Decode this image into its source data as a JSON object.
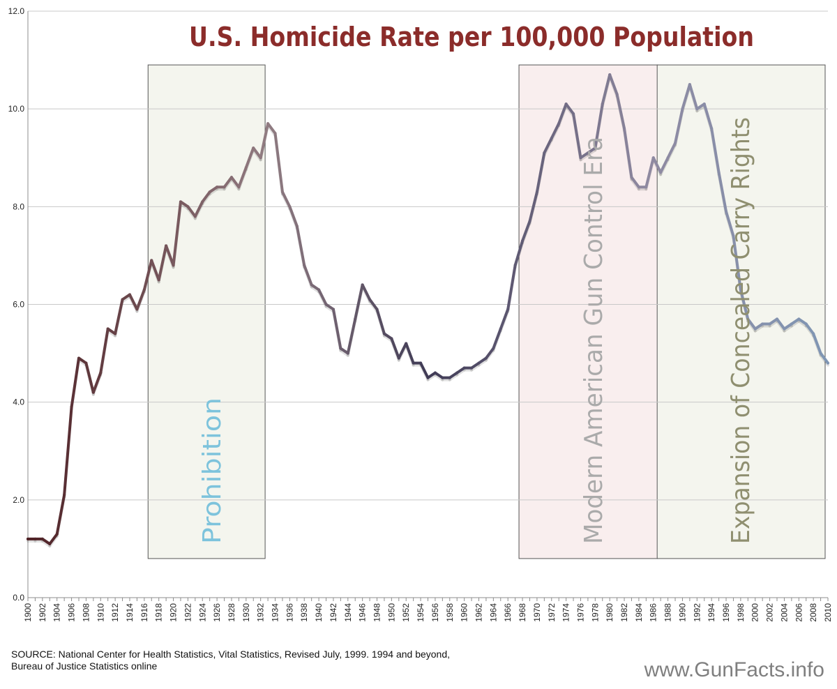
{
  "chart_data": {
    "type": "line",
    "title": "U.S. Homicide Rate per 100,000 Population",
    "xlabel": "",
    "ylabel": "",
    "ylim": [
      0,
      12
    ],
    "yticks": [
      "0.0",
      "2.0",
      "4.0",
      "6.0",
      "8.0",
      "10.0",
      "12.0"
    ],
    "xlim": [
      1900,
      2010
    ],
    "grid": true,
    "x": [
      1900,
      1901,
      1902,
      1903,
      1904,
      1905,
      1906,
      1907,
      1908,
      1909,
      1910,
      1911,
      1912,
      1913,
      1914,
      1915,
      1916,
      1917,
      1918,
      1919,
      1920,
      1921,
      1922,
      1923,
      1924,
      1925,
      1926,
      1927,
      1928,
      1929,
      1930,
      1931,
      1932,
      1933,
      1934,
      1935,
      1936,
      1937,
      1938,
      1939,
      1940,
      1941,
      1942,
      1943,
      1944,
      1945,
      1946,
      1947,
      1948,
      1949,
      1950,
      1951,
      1952,
      1953,
      1954,
      1955,
      1956,
      1957,
      1958,
      1959,
      1960,
      1961,
      1962,
      1963,
      1964,
      1965,
      1966,
      1967,
      1968,
      1969,
      1970,
      1971,
      1972,
      1973,
      1974,
      1975,
      1976,
      1977,
      1978,
      1979,
      1980,
      1981,
      1982,
      1983,
      1984,
      1985,
      1986,
      1987,
      1988,
      1989,
      1990,
      1991,
      1992,
      1993,
      1994,
      1995,
      1996,
      1997,
      1998,
      1999,
      2000,
      2001,
      2002,
      2003,
      2004,
      2005,
      2006,
      2007,
      2008,
      2009,
      2010
    ],
    "series": [
      {
        "name": "Homicide rate",
        "values": [
          1.2,
          1.2,
          1.2,
          1.1,
          1.3,
          2.1,
          3.9,
          4.9,
          4.8,
          4.2,
          4.6,
          5.5,
          5.4,
          6.1,
          6.2,
          5.9,
          6.3,
          6.9,
          6.5,
          7.2,
          6.8,
          8.1,
          8.0,
          7.8,
          8.1,
          8.3,
          8.4,
          8.4,
          8.6,
          8.4,
          8.8,
          9.2,
          9.0,
          9.7,
          9.5,
          8.3,
          8.0,
          7.6,
          6.8,
          6.4,
          6.3,
          6.0,
          5.9,
          5.1,
          5.0,
          5.7,
          6.4,
          6.1,
          5.9,
          5.4,
          5.3,
          4.9,
          5.2,
          4.8,
          4.8,
          4.5,
          4.6,
          4.5,
          4.5,
          4.6,
          4.7,
          4.7,
          4.8,
          4.9,
          5.1,
          5.5,
          5.9,
          6.8,
          7.3,
          7.7,
          8.3,
          9.1,
          9.4,
          9.7,
          10.1,
          9.9,
          9.0,
          9.1,
          9.2,
          10.1,
          10.7,
          10.3,
          9.6,
          8.6,
          8.4,
          8.4,
          9.0,
          8.7,
          9.0,
          9.3,
          10.0,
          10.5,
          10.0,
          10.1,
          9.6,
          8.7,
          7.9,
          7.4,
          6.3,
          5.7,
          5.5,
          5.6,
          5.6,
          5.7,
          5.5,
          5.6,
          5.7,
          5.6,
          5.4,
          5.0,
          4.8
        ]
      }
    ],
    "annotations": [
      {
        "label": "Prohibition",
        "x_start": 1917,
        "x_end": 1933,
        "y_bottom": 0.8,
        "y_top": 10.9,
        "fill": "#f4f5ee",
        "text_color": "#7dc3dc"
      },
      {
        "label": "Modern American Gun Control Era",
        "x_start": 1968,
        "x_end": 1987,
        "y_bottom": 0.8,
        "y_top": 10.9,
        "fill": "#f9eeee",
        "text_color": "#aaaaaa"
      },
      {
        "label": "Expansion of Concealed Carry Rights",
        "x_start": 1987,
        "x_end": 2010,
        "y_bottom": 0.8,
        "y_top": 10.9,
        "fill": "#f4f5ee",
        "text_color": "#8f8f70"
      }
    ]
  },
  "source_line1": "SOURCE: National Center for Health Statistics, Vital Statistics, Revised July, 1999. 1994 and beyond,",
  "source_line2": "Bureau of Justice Statistics online",
  "website": "www.GunFacts.info",
  "colors": {
    "title": "#8b2c2a",
    "line_segments": [
      "#4e2024",
      "#917c82",
      "#3f3a55",
      "#8f89a0",
      "#7f96b4"
    ]
  }
}
